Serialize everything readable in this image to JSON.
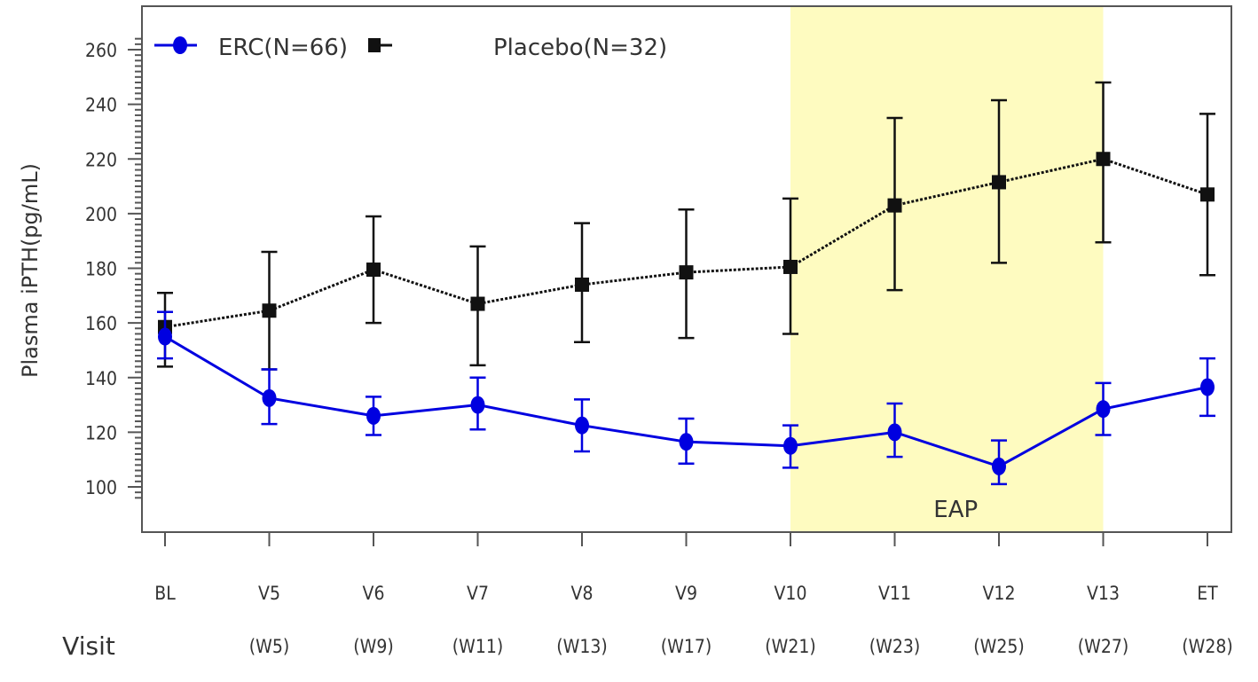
{
  "chart_data": {
    "type": "line",
    "title": "",
    "xlabel": "Visit",
    "ylabel": "Plasma iPTH(pg/mL)",
    "ylim": [
      84,
      276
    ],
    "yticks": [
      100,
      120,
      140,
      160,
      180,
      200,
      220,
      240,
      260
    ],
    "ytick_labels": [
      "100",
      "120",
      "140",
      "160",
      "180",
      "200",
      "220",
      "240",
      "260"
    ],
    "yminor_step": 2,
    "categories": [
      "BL",
      "V5",
      "V6",
      "V7",
      "V8",
      "V9",
      "V10",
      "V11",
      "V12",
      "V13",
      "ET"
    ],
    "category_sublabels": [
      "",
      "(W5)",
      "(W9)",
      "(W11)",
      "(W13)",
      "(W17)",
      "(W21)",
      "(W23)",
      "(W25)",
      "(W27)",
      "(W28)"
    ],
    "grid": false,
    "legend_placement": "top-left",
    "series": [
      {
        "name": "ERC(N=66)",
        "color": "#0000e0",
        "line_style": "solid",
        "marker": "circle",
        "values": [
          155,
          132.5,
          126,
          130,
          122.5,
          116.5,
          115,
          120,
          107.5,
          128.5,
          136.5
        ],
        "err_low": [
          147,
          123,
          119,
          121,
          113,
          108.5,
          107,
          111,
          101,
          119,
          126
        ],
        "err_high": [
          164,
          143,
          133,
          140,
          132,
          125,
          122.5,
          130.5,
          117,
          138,
          147
        ]
      },
      {
        "name": "Placebo(N=32)",
        "color": "#111111",
        "line_style": "dotted",
        "marker": "square",
        "values": [
          158.5,
          164.5,
          179.5,
          167,
          174,
          178.5,
          180.5,
          203,
          211.5,
          220,
          207
        ],
        "err_low": [
          144,
          143,
          160,
          144.5,
          153,
          154.5,
          156,
          172,
          182,
          189.5,
          177.5
        ],
        "err_high": [
          171,
          186,
          199,
          188,
          196.5,
          201.5,
          205.5,
          235,
          241.5,
          248,
          236.5
        ]
      }
    ],
    "shaded_region": {
      "label": "EAP",
      "from_category": "V10",
      "to_category": "V13",
      "color": "#ffffc0"
    }
  }
}
